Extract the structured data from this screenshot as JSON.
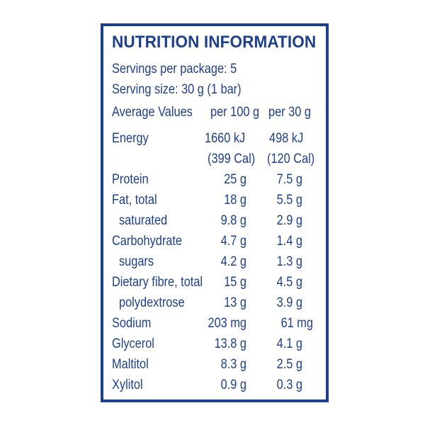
{
  "title": "NUTRITION INFORMATION",
  "servings_per_package": "Servings per package: 5",
  "serving_size": "Serving size: 30 g (1 bar)",
  "header": {
    "label": "Average Values",
    "col1": "per 100 g",
    "col2": "per 30 g"
  },
  "energy": {
    "label": "Energy",
    "kj_100": "1660 kJ",
    "kj_30": "498 kJ",
    "cal_100": "(399 Cal)",
    "cal_30": "(120 Cal)"
  },
  "rows": [
    {
      "label": "Protein",
      "per100": "25 g",
      "per30": "7.5 g"
    },
    {
      "label": "Fat, total",
      "per100": "18 g",
      "per30": "5.5 g"
    },
    {
      "label": "saturated",
      "per100": "9.8 g",
      "per30": "2.9 g"
    },
    {
      "label": "Carbohydrate",
      "per100": "4.7 g",
      "per30": "1.4 g"
    },
    {
      "label": "sugars",
      "per100": "4.2 g",
      "per30": "1.3 g"
    },
    {
      "label": "Dietary fibre, total",
      "per100": "15 g",
      "per30": "4.5 g"
    },
    {
      "label": "polydextrose",
      "per100": "13 g",
      "per30": "3.9 g"
    },
    {
      "label": "Sodium",
      "per100": "203 mg",
      "per30": "61 mg"
    },
    {
      "label": "Glycerol",
      "per100": "13.8 g",
      "per30": "4.1 g"
    },
    {
      "label": "Maltitol",
      "per100": "8.3 g",
      "per30": "2.5 g"
    },
    {
      "label": "Xylitol",
      "per100": "0.9 g",
      "per30": "0.3 g"
    }
  ],
  "colors": {
    "text": "#1d3f8c",
    "border": "#1d3f8c",
    "background": "#ffffff"
  }
}
